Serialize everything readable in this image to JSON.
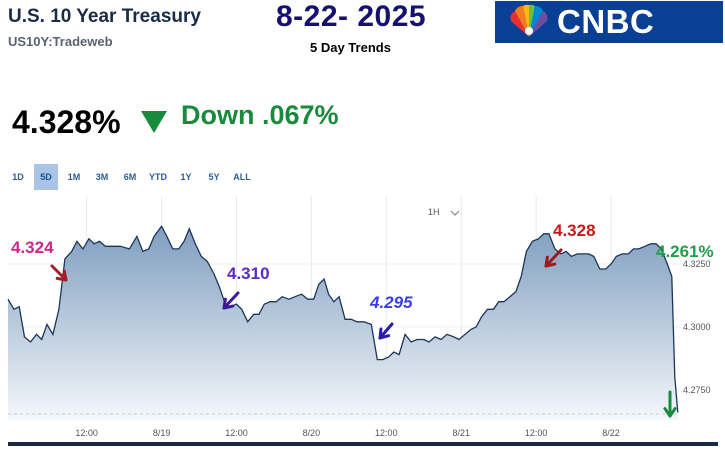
{
  "header": {
    "title": "U.S. 10 Year Treasury",
    "subtitle": "US10Y:Tradeweb",
    "date": "8-22- 2025",
    "trend_label": "5 Day Trends",
    "logo_text": "CNBC"
  },
  "quote": {
    "price": "4.328%",
    "change": "Down .067%",
    "direction_icon": "down-triangle-icon",
    "change_color": "#178a3c"
  },
  "range_tabs": [
    {
      "label": "1D",
      "selected": false
    },
    {
      "label": "5D",
      "selected": true
    },
    {
      "label": "1M",
      "selected": false
    },
    {
      "label": "3M",
      "selected": false
    },
    {
      "label": "6M",
      "selected": false
    },
    {
      "label": "YTD",
      "selected": false
    },
    {
      "label": "1Y",
      "selected": false
    },
    {
      "label": "5Y",
      "selected": false
    },
    {
      "label": "ALL",
      "selected": false
    }
  ],
  "interval": {
    "label": "1H",
    "icon": "chevron-down-icon"
  },
  "chart_data": {
    "type": "area",
    "x_ticks": [
      {
        "label": "12:00",
        "x": 1.05
      },
      {
        "label": "8/19",
        "x": 2.05
      },
      {
        "label": "12:00",
        "x": 3.05
      },
      {
        "label": "8/20",
        "x": 4.05
      },
      {
        "label": "12:00",
        "x": 5.05
      },
      {
        "label": "8/21",
        "x": 6.05
      },
      {
        "label": "12:00",
        "x": 7.05
      },
      {
        "label": "8/22",
        "x": 8.05
      }
    ],
    "y_ticks": [
      4.325,
      4.3,
      4.275
    ],
    "y_tick_labels": [
      "4.3250",
      "4.3000",
      "4.2750"
    ],
    "ylim": [
      4.263,
      4.352
    ],
    "xlim": [
      0,
      8.97
    ],
    "points": [
      [
        0.0,
        4.311
      ],
      [
        0.08,
        4.307
      ],
      [
        0.15,
        4.308
      ],
      [
        0.22,
        4.296
      ],
      [
        0.3,
        4.294
      ],
      [
        0.38,
        4.297
      ],
      [
        0.45,
        4.295
      ],
      [
        0.52,
        4.301
      ],
      [
        0.6,
        4.297
      ],
      [
        0.68,
        4.307
      ],
      [
        0.76,
        4.327
      ],
      [
        0.85,
        4.33
      ],
      [
        0.92,
        4.334
      ],
      [
        1.0,
        4.331
      ],
      [
        1.08,
        4.335
      ],
      [
        1.15,
        4.333
      ],
      [
        1.22,
        4.334
      ],
      [
        1.3,
        4.332
      ],
      [
        1.4,
        4.332
      ],
      [
        1.5,
        4.332
      ],
      [
        1.62,
        4.331
      ],
      [
        1.72,
        4.336
      ],
      [
        1.8,
        4.33
      ],
      [
        1.88,
        4.331
      ],
      [
        1.95,
        4.336
      ],
      [
        2.05,
        4.34
      ],
      [
        2.12,
        4.336
      ],
      [
        2.2,
        4.331
      ],
      [
        2.28,
        4.331
      ],
      [
        2.35,
        4.334
      ],
      [
        2.42,
        4.339
      ],
      [
        2.5,
        4.333
      ],
      [
        2.58,
        4.328
      ],
      [
        2.66,
        4.326
      ],
      [
        2.75,
        4.321
      ],
      [
        2.82,
        4.316
      ],
      [
        2.9,
        4.309
      ],
      [
        2.97,
        4.308
      ],
      [
        3.05,
        4.309
      ],
      [
        3.12,
        4.307
      ],
      [
        3.2,
        4.302
      ],
      [
        3.28,
        4.305
      ],
      [
        3.35,
        4.305
      ],
      [
        3.42,
        4.309
      ],
      [
        3.5,
        4.31
      ],
      [
        3.58,
        4.31
      ],
      [
        3.66,
        4.312
      ],
      [
        3.75,
        4.311
      ],
      [
        3.83,
        4.312
      ],
      [
        3.92,
        4.313
      ],
      [
        4.0,
        4.311
      ],
      [
        4.08,
        4.311
      ],
      [
        4.15,
        4.317
      ],
      [
        4.22,
        4.319
      ],
      [
        4.28,
        4.313
      ],
      [
        4.35,
        4.31
      ],
      [
        4.42,
        4.312
      ],
      [
        4.5,
        4.303
      ],
      [
        4.58,
        4.303
      ],
      [
        4.66,
        4.302
      ],
      [
        4.75,
        4.302
      ],
      [
        4.85,
        4.301
      ],
      [
        4.93,
        4.287
      ],
      [
        5.0,
        4.287
      ],
      [
        5.08,
        4.288
      ],
      [
        5.15,
        4.29
      ],
      [
        5.22,
        4.289
      ],
      [
        5.3,
        4.297
      ],
      [
        5.38,
        4.294
      ],
      [
        5.46,
        4.295
      ],
      [
        5.55,
        4.295
      ],
      [
        5.62,
        4.294
      ],
      [
        5.7,
        4.296
      ],
      [
        5.78,
        4.295
      ],
      [
        5.86,
        4.297
      ],
      [
        5.95,
        4.296
      ],
      [
        6.02,
        4.295
      ],
      [
        6.1,
        4.297
      ],
      [
        6.18,
        4.299
      ],
      [
        6.25,
        4.3
      ],
      [
        6.32,
        4.304
      ],
      [
        6.4,
        4.307
      ],
      [
        6.48,
        4.307
      ],
      [
        6.55,
        4.31
      ],
      [
        6.62,
        4.31
      ],
      [
        6.7,
        4.312
      ],
      [
        6.78,
        4.314
      ],
      [
        6.85,
        4.32
      ],
      [
        6.92,
        4.33
      ],
      [
        7.0,
        4.334
      ],
      [
        7.08,
        4.335
      ],
      [
        7.15,
        4.337
      ],
      [
        7.22,
        4.337
      ],
      [
        7.3,
        4.331
      ],
      [
        7.38,
        4.329
      ],
      [
        7.45,
        4.33
      ],
      [
        7.52,
        4.328
      ],
      [
        7.6,
        4.329
      ],
      [
        7.68,
        4.329
      ],
      [
        7.75,
        4.329
      ],
      [
        7.82,
        4.328
      ],
      [
        7.9,
        4.323
      ],
      [
        7.98,
        4.323
      ],
      [
        8.05,
        4.325
      ],
      [
        8.12,
        4.328
      ],
      [
        8.2,
        4.329
      ],
      [
        8.28,
        4.329
      ],
      [
        8.35,
        4.331
      ],
      [
        8.42,
        4.331
      ],
      [
        8.5,
        4.332
      ],
      [
        8.58,
        4.333
      ],
      [
        8.65,
        4.333
      ],
      [
        8.72,
        4.331
      ],
      [
        8.8,
        4.325
      ],
      [
        8.86,
        4.32
      ],
      [
        8.9,
        4.28
      ],
      [
        8.94,
        4.266
      ]
    ]
  },
  "annotations": [
    {
      "text": "4.324",
      "color": "#d0268a",
      "arrow_color": "#a31d2a"
    },
    {
      "text": "4.310",
      "color": "#5a2ac4",
      "arrow_color": "#3a1d95"
    },
    {
      "text": "4.295",
      "color": "#3a3fe0",
      "arrow_color": "#2a1da5"
    },
    {
      "text": "4.328",
      "color": "#c41a1a",
      "arrow_color": "#9e1a1a"
    },
    {
      "text": "4.261%",
      "color": "#1f9e4a",
      "arrow_color": "#178a3c"
    }
  ],
  "colors": {
    "line": "#1c3558",
    "fill_top": "#7f9ebf",
    "fill_bottom": "#f4f7fb",
    "brand": "#0a3f96"
  }
}
